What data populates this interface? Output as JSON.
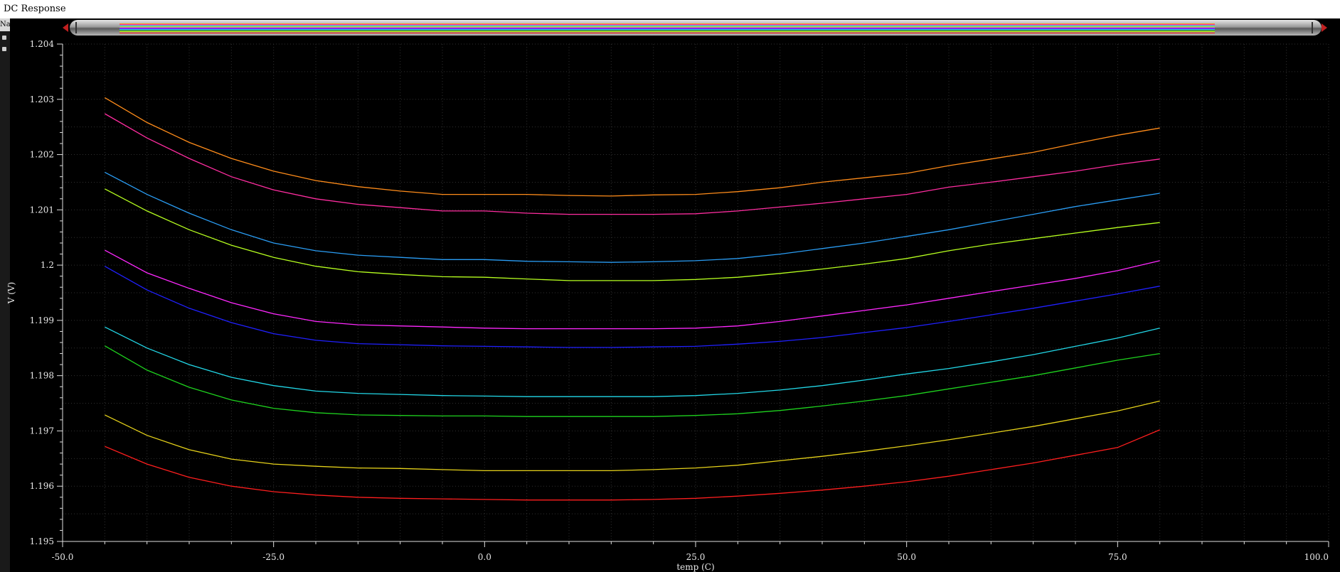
{
  "window": {
    "title": "DC Response",
    "legend_tab": "Na"
  },
  "chart_data": {
    "type": "line",
    "xlabel": "temp (C)",
    "ylabel": "V (V)",
    "xlim": [
      -50.0,
      100.0
    ],
    "ylim": [
      1.195,
      1.204
    ],
    "xticks": [
      "-50.0",
      "-25.0",
      "0.0",
      "25.0",
      "50.0",
      "75.0",
      "100.0"
    ],
    "yticks": [
      "1.195",
      "1.196",
      "1.197",
      "1.198",
      "1.199",
      "1.2",
      "1.201",
      "1.202",
      "1.203",
      "1.204"
    ],
    "grid": true,
    "x": [
      -45,
      -40,
      -35,
      -30,
      -25,
      -20,
      -15,
      -10,
      -5,
      0,
      5,
      10,
      15,
      20,
      25,
      30,
      35,
      40,
      45,
      50,
      55,
      60,
      65,
      70,
      75,
      80
    ],
    "series": [
      {
        "color": "#ff8c1a",
        "values": [
          1.20303,
          1.20258,
          1.20222,
          1.20193,
          1.2017,
          1.20153,
          1.20142,
          1.20134,
          1.20128,
          1.20128,
          1.20128,
          1.20126,
          1.20125,
          1.20127,
          1.20128,
          1.20133,
          1.2014,
          1.2015,
          1.20158,
          1.20166,
          1.2018,
          1.20192,
          1.20204,
          1.2022,
          1.20235,
          1.20248
        ]
      },
      {
        "color": "#ff2da0",
        "values": [
          1.20274,
          1.2023,
          1.20193,
          1.2016,
          1.20136,
          1.2012,
          1.2011,
          1.20104,
          1.20098,
          1.20098,
          1.20094,
          1.20092,
          1.20092,
          1.20092,
          1.20093,
          1.20098,
          1.20105,
          1.20112,
          1.2012,
          1.20128,
          1.20141,
          1.2015,
          1.2016,
          1.2017,
          1.20182,
          1.20192
        ]
      },
      {
        "color": "#2a9df4",
        "values": [
          1.20168,
          1.20128,
          1.20094,
          1.20064,
          1.2004,
          1.20026,
          1.20018,
          1.20014,
          1.2001,
          1.2001,
          1.20007,
          1.20006,
          1.20005,
          1.20006,
          1.20008,
          1.20012,
          1.2002,
          1.2003,
          1.2004,
          1.20052,
          1.20064,
          1.20078,
          1.20092,
          1.20106,
          1.20118,
          1.2013
        ]
      },
      {
        "color": "#b6ff1f",
        "values": [
          1.20138,
          1.20098,
          1.20064,
          1.20036,
          1.20014,
          1.19998,
          1.19988,
          1.19983,
          1.19979,
          1.19978,
          1.19975,
          1.19972,
          1.19972,
          1.19972,
          1.19974,
          1.19978,
          1.19985,
          1.19993,
          1.20002,
          1.20012,
          1.20026,
          1.20038,
          1.20048,
          1.20058,
          1.20068,
          1.20077
        ]
      },
      {
        "color": "#ff28ff",
        "values": [
          1.20027,
          1.19986,
          1.19958,
          1.19932,
          1.19912,
          1.19898,
          1.19892,
          1.1989,
          1.19888,
          1.19886,
          1.19885,
          1.19885,
          1.19885,
          1.19885,
          1.19886,
          1.1989,
          1.19898,
          1.19908,
          1.19918,
          1.19928,
          1.1994,
          1.19952,
          1.19964,
          1.19976,
          1.1999,
          1.20008
        ]
      },
      {
        "color": "#2020ff",
        "values": [
          1.19998,
          1.19955,
          1.19922,
          1.19896,
          1.19876,
          1.19864,
          1.19858,
          1.19856,
          1.19854,
          1.19853,
          1.19852,
          1.19851,
          1.19851,
          1.19852,
          1.19853,
          1.19857,
          1.19862,
          1.19869,
          1.19878,
          1.19887,
          1.19898,
          1.1991,
          1.19922,
          1.19935,
          1.19948,
          1.19962
        ]
      },
      {
        "color": "#22d8e8",
        "values": [
          1.19888,
          1.1985,
          1.1982,
          1.19797,
          1.19782,
          1.19772,
          1.19768,
          1.19766,
          1.19764,
          1.19763,
          1.19762,
          1.19762,
          1.19762,
          1.19762,
          1.19764,
          1.19768,
          1.19774,
          1.19782,
          1.19792,
          1.19803,
          1.19813,
          1.19825,
          1.19838,
          1.19853,
          1.19868,
          1.19886
        ]
      },
      {
        "color": "#1ed21e",
        "values": [
          1.19854,
          1.1981,
          1.19779,
          1.19756,
          1.19741,
          1.19733,
          1.19729,
          1.19728,
          1.19727,
          1.19727,
          1.19726,
          1.19726,
          1.19726,
          1.19726,
          1.19728,
          1.19731,
          1.19737,
          1.19745,
          1.19754,
          1.19764,
          1.19776,
          1.19788,
          1.198,
          1.19814,
          1.19828,
          1.1984
        ]
      },
      {
        "color": "#e6d21a",
        "values": [
          1.19729,
          1.19692,
          1.19666,
          1.19649,
          1.1964,
          1.19636,
          1.19633,
          1.19632,
          1.1963,
          1.19628,
          1.19628,
          1.19628,
          1.19628,
          1.1963,
          1.19633,
          1.19638,
          1.19646,
          1.19654,
          1.19663,
          1.19673,
          1.19684,
          1.19696,
          1.19708,
          1.19722,
          1.19736,
          1.19754
        ]
      },
      {
        "color": "#ff1e1e",
        "values": [
          1.19672,
          1.1964,
          1.19616,
          1.196,
          1.1959,
          1.19584,
          1.1958,
          1.19578,
          1.19577,
          1.19576,
          1.19575,
          1.19575,
          1.19575,
          1.19576,
          1.19578,
          1.19582,
          1.19587,
          1.19593,
          1.196,
          1.19608,
          1.19618,
          1.1963,
          1.19642,
          1.19656,
          1.1967,
          1.19702
        ]
      }
    ]
  }
}
